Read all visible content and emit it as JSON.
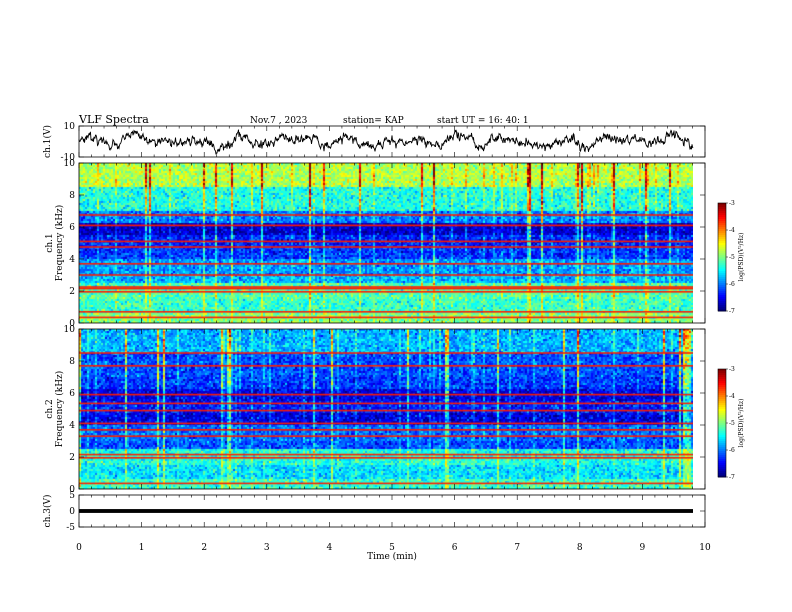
{
  "header": {
    "title": "VLF Spectra",
    "date": "Nov.7 , 2023",
    "station": "station= KAP",
    "start_ut": "start UT =  16: 40: 1"
  },
  "chart_data": [
    {
      "type": "line",
      "ylabel": "ch.1(V)",
      "ylim": [
        -10,
        10
      ],
      "y_ticklabels": [
        "10",
        "-10"
      ],
      "xlim": [
        0,
        10
      ],
      "series_color": "#000000",
      "trace": {
        "mean": 0,
        "amplitude_approx": 5
      }
    },
    {
      "type": "heatmap",
      "ylabel_line1": "ch.1",
      "ylabel_line2": "Frequency (kHz)",
      "ylim": [
        0,
        10
      ],
      "y_ticklabels": [
        "0",
        "2",
        "4",
        "6",
        "8",
        "10"
      ],
      "xlim": [
        0,
        9.8
      ],
      "colorbar": {
        "label": "log(PSD)(V²/Hz)",
        "range": [
          -7,
          -3
        ],
        "ticklabels": [
          "-7",
          "-6",
          "-5",
          "-4",
          "-3"
        ]
      },
      "bands": [
        {
          "f0": 0.0,
          "f1": 0.6,
          "level": -5.0
        },
        {
          "f0": 0.6,
          "f1": 1.5,
          "level": -5.3
        },
        {
          "f0": 1.5,
          "f1": 2.5,
          "level": -5.2
        },
        {
          "f0": 2.5,
          "f1": 3.0,
          "level": -5.8
        },
        {
          "f0": 3.0,
          "f1": 4.0,
          "level": -5.9
        },
        {
          "f0": 4.0,
          "f1": 4.7,
          "level": -6.3
        },
        {
          "f0": 4.7,
          "f1": 5.5,
          "level": -6.4
        },
        {
          "f0": 5.5,
          "f1": 6.3,
          "level": -6.7
        },
        {
          "f0": 6.3,
          "f1": 7.0,
          "level": -6.0
        },
        {
          "f0": 7.0,
          "f1": 8.5,
          "level": -5.4
        },
        {
          "f0": 8.5,
          "f1": 10.0,
          "level": -4.8
        }
      ],
      "lines_khz": [
        0.35,
        0.7,
        1.95,
        2.15,
        2.25,
        3.0,
        3.7,
        4.75,
        5.1,
        6.1,
        6.75
      ]
    },
    {
      "type": "heatmap",
      "ylabel_line1": "ch.2",
      "ylabel_line2": "Frequency (kHz)",
      "ylim": [
        0,
        10
      ],
      "y_ticklabels": [
        "0",
        "2",
        "4",
        "6",
        "8",
        "10"
      ],
      "xlim": [
        0,
        9.8
      ],
      "colorbar": {
        "label": "log(PSD)(V²/Hz)",
        "range": [
          -7,
          -3
        ],
        "ticklabels": [
          "-7",
          "-6",
          "-5",
          "-4",
          "-3"
        ]
      },
      "bands": [
        {
          "f0": 0.0,
          "f1": 0.6,
          "level": -5.3
        },
        {
          "f0": 0.6,
          "f1": 1.5,
          "level": -5.6
        },
        {
          "f0": 1.5,
          "f1": 2.5,
          "level": -5.4
        },
        {
          "f0": 2.5,
          "f1": 3.0,
          "level": -6.2
        },
        {
          "f0": 3.0,
          "f1": 4.0,
          "level": -6.1
        },
        {
          "f0": 4.0,
          "f1": 4.7,
          "level": -6.6
        },
        {
          "f0": 4.7,
          "f1": 5.5,
          "level": -6.4
        },
        {
          "f0": 5.5,
          "f1": 6.3,
          "level": -6.6
        },
        {
          "f0": 6.3,
          "f1": 7.0,
          "level": -6.3
        },
        {
          "f0": 7.0,
          "f1": 8.5,
          "level": -6.2
        },
        {
          "f0": 8.5,
          "f1": 10.0,
          "level": -5.8
        }
      ],
      "lines_khz": [
        0.35,
        1.95,
        2.15,
        3.3,
        3.7,
        4.1,
        4.9,
        5.35,
        5.9,
        7.7,
        8.5
      ]
    },
    {
      "type": "line",
      "ylabel": "ch.3(V)",
      "ylim": [
        -5,
        5
      ],
      "y_ticklabels": [
        "5",
        "0",
        "-5"
      ],
      "xlim": [
        0,
        10
      ],
      "xlabel": "Time (min)",
      "x_ticklabels": [
        "0",
        "1",
        "2",
        "3",
        "4",
        "5",
        "6",
        "7",
        "8",
        "9",
        "10"
      ],
      "series_color": "#000000",
      "trace": {
        "mean": 0,
        "thickness_v": 1.2
      }
    }
  ]
}
